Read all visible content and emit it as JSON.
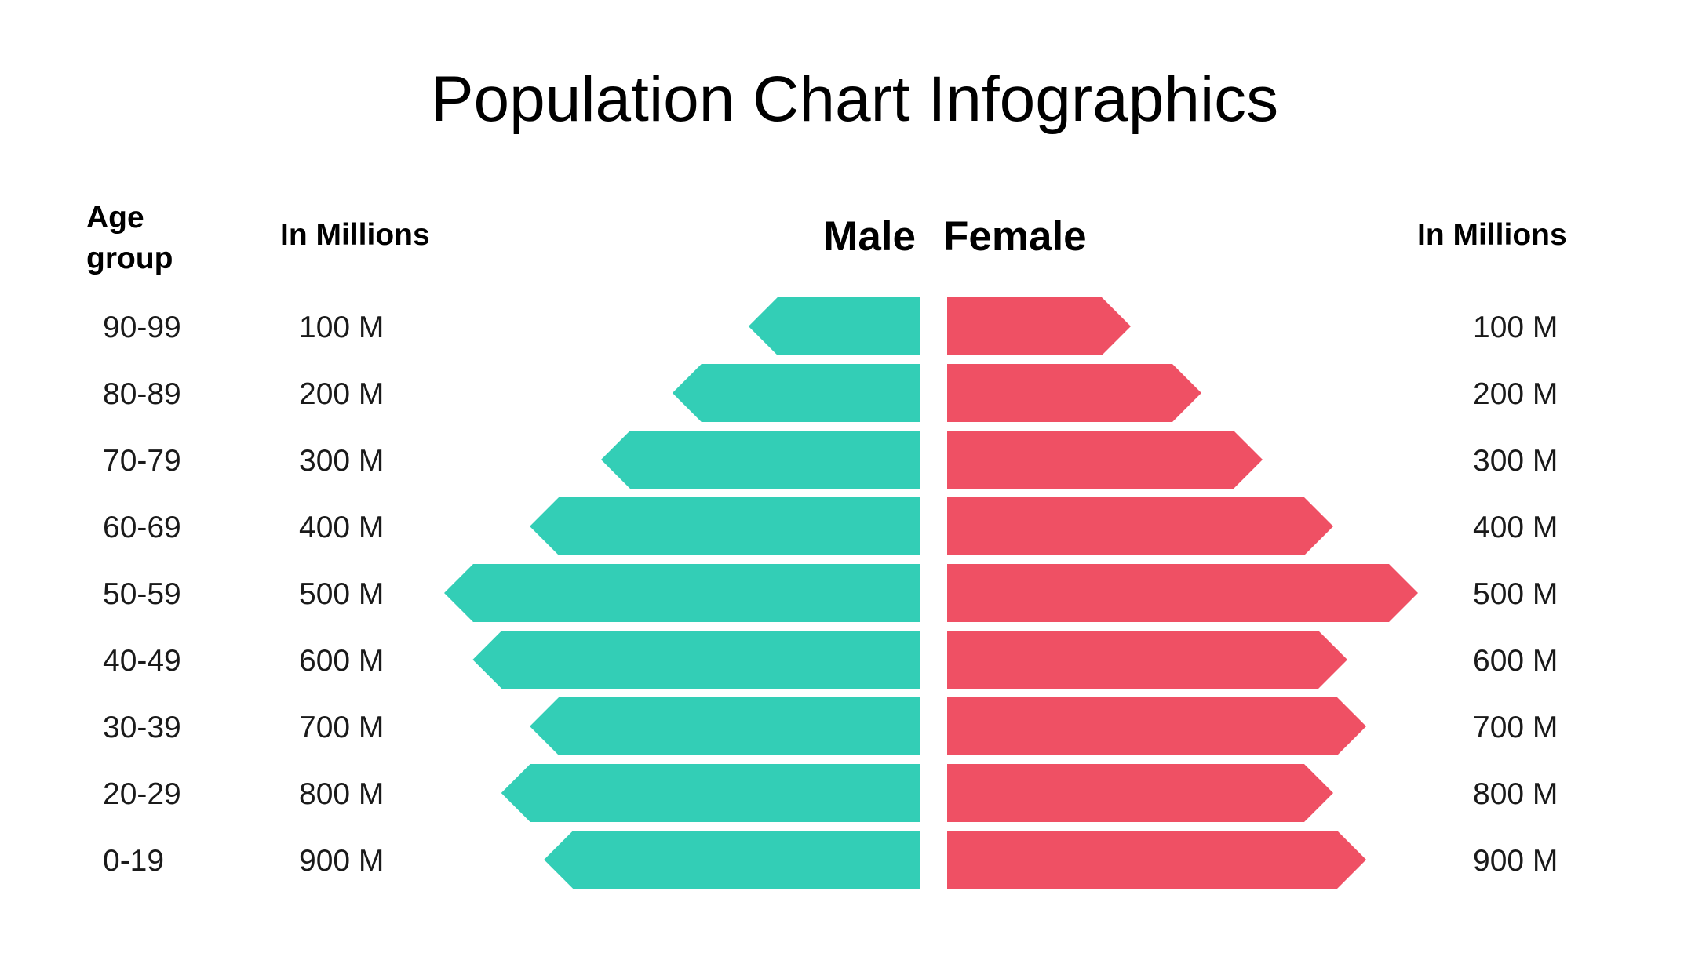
{
  "title": "Population Chart Infographics",
  "headers": {
    "age_group": "Age group",
    "male_millions": "In Millions",
    "male": "Male",
    "female": "Female",
    "female_millions": "In Millions"
  },
  "colors": {
    "male": "#33CEB6",
    "female": "#EF5064"
  },
  "chart_data": {
    "type": "bar",
    "orientation": "horizontal-pyramid",
    "title": "Population Chart Infographics",
    "categories": [
      "90-99",
      "80-89",
      "70-79",
      "60-69",
      "50-59",
      "40-49",
      "30-39",
      "20-29",
      "0-19"
    ],
    "male_labels": [
      "100 M",
      "200 M",
      "300 M",
      "400 M",
      "500 M",
      "600 M",
      "700 M",
      "800 M",
      "900 M"
    ],
    "female_labels": [
      "100 M",
      "200 M",
      "300 M",
      "400 M",
      "500 M",
      "600 M",
      "700 M",
      "800 M",
      "900 M"
    ],
    "series": [
      {
        "name": "Male",
        "values": [
          0.36,
          0.52,
          0.67,
          0.82,
          1.0,
          0.94,
          0.82,
          0.88,
          0.79
        ]
      },
      {
        "name": "Female",
        "values": [
          0.39,
          0.54,
          0.67,
          0.82,
          1.0,
          0.85,
          0.89,
          0.82,
          0.89
        ]
      }
    ],
    "values_note_unit": "relative bar length (max = 1)",
    "grid": false,
    "legend": "top-center"
  }
}
